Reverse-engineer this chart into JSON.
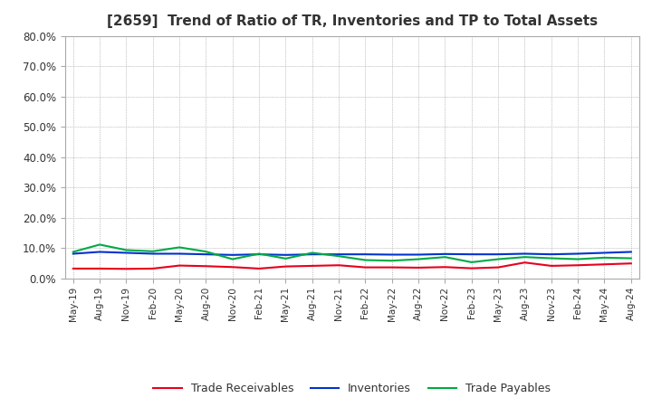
{
  "title": "[2659]  Trend of Ratio of TR, Inventories and TP to Total Assets",
  "title_fontsize": 11,
  "title_color": "#333333",
  "background_color": "#ffffff",
  "plot_bg_color": "#ffffff",
  "ylim": [
    0.0,
    0.8
  ],
  "yticks": [
    0.0,
    0.1,
    0.2,
    0.3,
    0.4,
    0.5,
    0.6,
    0.7,
    0.8
  ],
  "x_labels": [
    "May-19",
    "Aug-19",
    "Nov-19",
    "Feb-20",
    "May-20",
    "Aug-20",
    "Nov-20",
    "Feb-21",
    "May-21",
    "Aug-21",
    "Nov-21",
    "Feb-22",
    "May-22",
    "Aug-22",
    "Nov-22",
    "Feb-23",
    "May-23",
    "Aug-23",
    "Nov-23",
    "Feb-24",
    "May-24",
    "Aug-24"
  ],
  "trade_receivables": [
    0.033,
    0.033,
    0.032,
    0.033,
    0.043,
    0.041,
    0.038,
    0.033,
    0.04,
    0.042,
    0.044,
    0.037,
    0.037,
    0.036,
    0.038,
    0.034,
    0.037,
    0.053,
    0.042,
    0.044,
    0.047,
    0.05
  ],
  "inventories": [
    0.082,
    0.088,
    0.085,
    0.082,
    0.082,
    0.08,
    0.078,
    0.08,
    0.078,
    0.08,
    0.08,
    0.08,
    0.079,
    0.079,
    0.081,
    0.08,
    0.08,
    0.082,
    0.08,
    0.082,
    0.085,
    0.088
  ],
  "trade_payables": [
    0.088,
    0.112,
    0.094,
    0.09,
    0.103,
    0.089,
    0.064,
    0.082,
    0.066,
    0.085,
    0.074,
    0.061,
    0.059,
    0.064,
    0.071,
    0.054,
    0.064,
    0.071,
    0.067,
    0.064,
    0.069,
    0.067
  ],
  "line_colors": {
    "trade_receivables": "#e8001c",
    "inventories": "#0033cc",
    "trade_payables": "#00aa44"
  },
  "legend_labels": [
    "Trade Receivables",
    "Inventories",
    "Trade Payables"
  ],
  "grid_color": "#999999",
  "spine_color": "#aaaaaa"
}
